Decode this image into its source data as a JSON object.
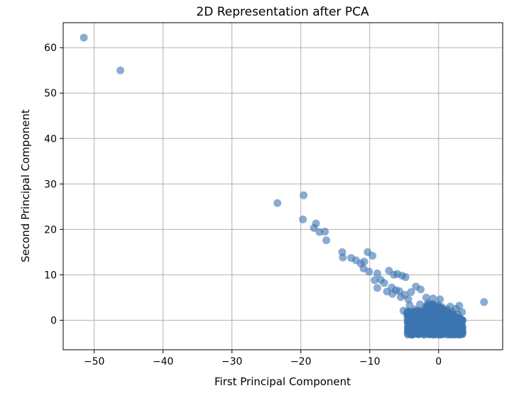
{
  "chart_data": {
    "type": "scatter",
    "title": "2D Representation after PCA",
    "xlabel": "First Principal Component",
    "ylabel": "Second Principal Component",
    "xlim": [
      -54.5,
      9.3
    ],
    "ylim": [
      -6.5,
      65.5
    ],
    "xticks": [
      -50,
      -40,
      -30,
      -20,
      -10,
      0
    ],
    "yticks": [
      0,
      10,
      20,
      30,
      40,
      50,
      60
    ],
    "xtick_labels": [
      "−50",
      "−40",
      "−30",
      "−20",
      "−10",
      "0"
    ],
    "ytick_labels": [
      "0",
      "10",
      "20",
      "30",
      "40",
      "50",
      "60"
    ],
    "grid": true,
    "marker_color": "#3c74b0",
    "marker_alpha": 0.6,
    "points": [
      [
        -51.5,
        62.2
      ],
      [
        -46.2,
        55.0
      ],
      [
        -23.4,
        25.8
      ],
      [
        -19.6,
        27.5
      ],
      [
        -19.7,
        22.2
      ],
      [
        -17.8,
        21.3
      ],
      [
        -18.1,
        20.3
      ],
      [
        -17.3,
        19.4
      ],
      [
        -16.5,
        19.5
      ],
      [
        -16.3,
        17.6
      ],
      [
        -14.0,
        15.0
      ],
      [
        -13.9,
        13.8
      ],
      [
        -12.7,
        13.7
      ],
      [
        -12.0,
        13.2
      ],
      [
        -11.3,
        12.5
      ],
      [
        -10.8,
        12.9
      ],
      [
        -10.3,
        15.0
      ],
      [
        -9.6,
        14.2
      ],
      [
        -10.9,
        11.4
      ],
      [
        -10.1,
        10.7
      ],
      [
        -8.9,
        10.3
      ],
      [
        -9.3,
        8.8
      ],
      [
        -8.9,
        7.1
      ],
      [
        -8.4,
        8.9
      ],
      [
        -7.9,
        8.2
      ],
      [
        -7.2,
        10.9
      ],
      [
        -6.5,
        10.0
      ],
      [
        -6.0,
        10.2
      ],
      [
        -5.3,
        9.8
      ],
      [
        -4.8,
        9.5
      ],
      [
        -7.5,
        6.3
      ],
      [
        -6.7,
        5.8
      ],
      [
        -5.7,
        6.4
      ],
      [
        -4.9,
        5.6
      ],
      [
        -3.3,
        7.4
      ],
      [
        -2.6,
        6.8
      ],
      [
        -1.8,
        5.0
      ],
      [
        -0.8,
        4.8
      ],
      [
        0.2,
        4.6
      ],
      [
        6.6,
        4.0
      ],
      [
        -6.8,
        7.2
      ],
      [
        -6.2,
        6.6
      ],
      [
        -5.5,
        5.1
      ],
      [
        -4.4,
        4.6
      ],
      [
        -4.0,
        6.2
      ],
      [
        -5.1,
        2.1
      ],
      [
        -4.6,
        1.4
      ],
      [
        -4.2,
        3.3
      ],
      [
        -3.8,
        0.9
      ],
      [
        -3.6,
        -0.6
      ],
      [
        -3.4,
        2.4
      ],
      [
        -3.1,
        1.2
      ],
      [
        -2.9,
        -1.2
      ],
      [
        -2.7,
        3.5
      ],
      [
        -2.5,
        0.3
      ],
      [
        -2.3,
        -2.1
      ],
      [
        -2.2,
        1.8
      ],
      [
        -2.0,
        -0.4
      ],
      [
        -1.9,
        2.9
      ],
      [
        -1.7,
        -2.6
      ],
      [
        -1.6,
        0.8
      ],
      [
        -1.5,
        3.8
      ],
      [
        -1.4,
        -1.5
      ],
      [
        -1.2,
        2.2
      ],
      [
        -1.1,
        0.1
      ],
      [
        -1.0,
        -2.9
      ],
      [
        -0.9,
        1.5
      ],
      [
        -0.8,
        3.1
      ],
      [
        -0.7,
        -0.9
      ],
      [
        -0.6,
        -2.2
      ],
      [
        -0.5,
        0.5
      ],
      [
        -0.4,
        2.6
      ],
      [
        -0.3,
        -1.8
      ],
      [
        -0.2,
        1.1
      ],
      [
        -0.1,
        3.4
      ],
      [
        0.0,
        -0.2
      ],
      [
        0.1,
        -2.5
      ],
      [
        0.2,
        2.0
      ],
      [
        0.3,
        0.7
      ],
      [
        0.4,
        -1.1
      ],
      [
        0.5,
        2.9
      ],
      [
        0.7,
        -0.5
      ],
      [
        0.8,
        1.6
      ],
      [
        0.9,
        -2.0
      ],
      [
        1.1,
        0.2
      ],
      [
        1.2,
        2.4
      ],
      [
        1.4,
        -1.3
      ],
      [
        1.5,
        1.0
      ],
      [
        1.7,
        3.0
      ],
      [
        1.8,
        -0.7
      ],
      [
        2.0,
        1.8
      ],
      [
        2.2,
        -1.6
      ],
      [
        2.3,
        0.6
      ],
      [
        2.5,
        2.5
      ],
      [
        2.7,
        -0.3
      ],
      [
        2.8,
        1.3
      ],
      [
        3.0,
        3.2
      ],
      [
        3.2,
        -0.9
      ],
      [
        3.4,
        1.8
      ],
      [
        2.6,
        0.1
      ],
      [
        -3.2,
        -2.8
      ],
      [
        -2.1,
        -3.2
      ],
      [
        -1.3,
        -3.0
      ],
      [
        -0.3,
        -2.7
      ],
      [
        0.6,
        -2.4
      ],
      [
        -4.5,
        0.2
      ],
      [
        -3.9,
        -1.7
      ],
      [
        -2.6,
        -1.4
      ],
      [
        -1.8,
        1.3
      ],
      [
        -0.9,
        -1.3
      ]
    ]
  }
}
